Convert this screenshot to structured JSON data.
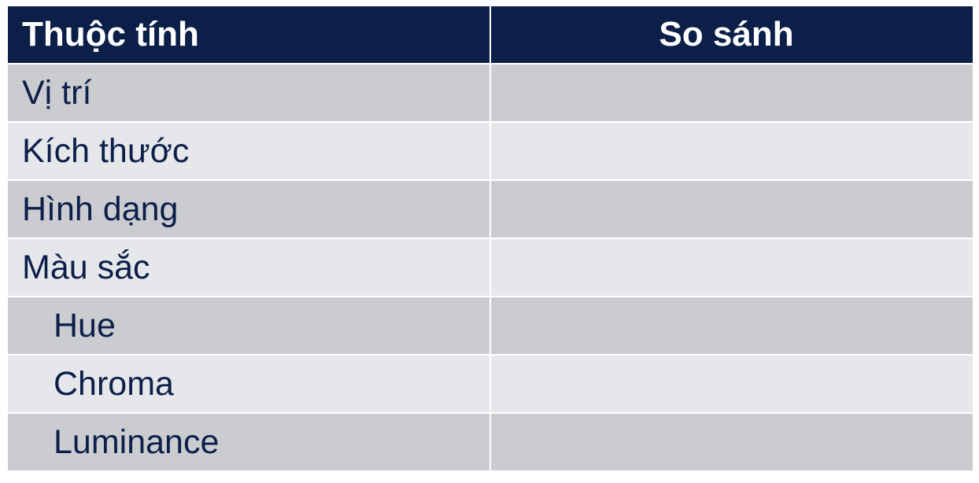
{
  "table": {
    "headers": {
      "attribute": "Thuộc tính",
      "comparison": "So sánh"
    },
    "rows": [
      {
        "label": "Vị trí",
        "indent": false,
        "value": ""
      },
      {
        "label": "Kích thước",
        "indent": false,
        "value": ""
      },
      {
        "label": "Hình dạng",
        "indent": false,
        "value": ""
      },
      {
        "label": "Màu sắc",
        "indent": false,
        "value": ""
      },
      {
        "label": "Hue",
        "indent": true,
        "value": ""
      },
      {
        "label": "Chroma",
        "indent": true,
        "value": ""
      },
      {
        "label": "Luminance",
        "indent": true,
        "value": ""
      }
    ],
    "colors": {
      "header_bg": "#0c1f48",
      "row_dark": "#cbccd0",
      "row_light": "#e6e7ea",
      "text": "#0c1f4a"
    }
  }
}
